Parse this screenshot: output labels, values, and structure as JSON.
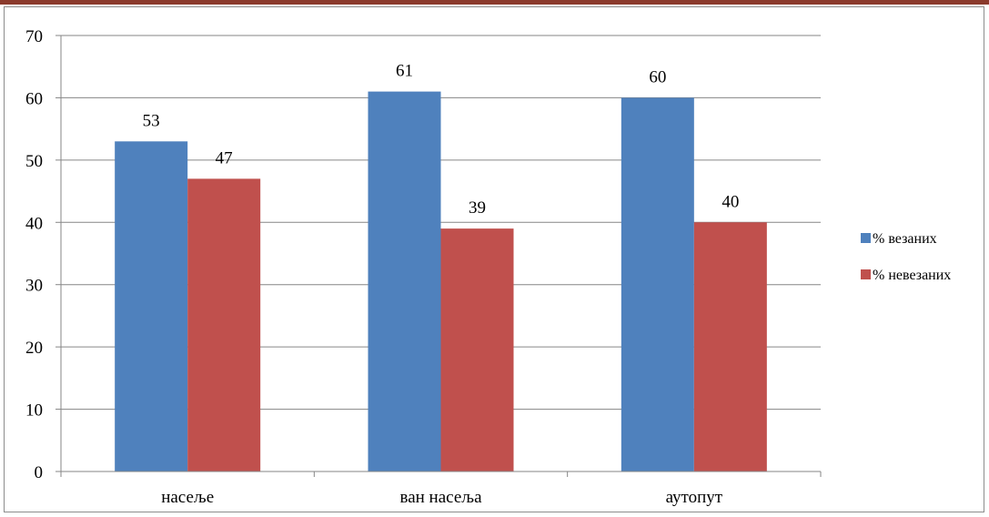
{
  "chart_data": {
    "type": "bar",
    "categories": [
      "насеље",
      "ван насеља",
      "аутопут"
    ],
    "series": [
      {
        "name": "% везаних",
        "values": [
          53,
          61,
          60
        ],
        "color": "#4f81bd"
      },
      {
        "name": "% невезаних",
        "values": [
          47,
          39,
          40
        ],
        "color": "#c0504d"
      }
    ],
    "ylim": [
      0,
      70
    ],
    "yticks": [
      0,
      10,
      20,
      30,
      40,
      50,
      60,
      70
    ],
    "grid": true,
    "legend": "right",
    "data_labels": true
  },
  "colors": {
    "frame_accent": "#8b3a2c",
    "gridline": "#868686"
  }
}
